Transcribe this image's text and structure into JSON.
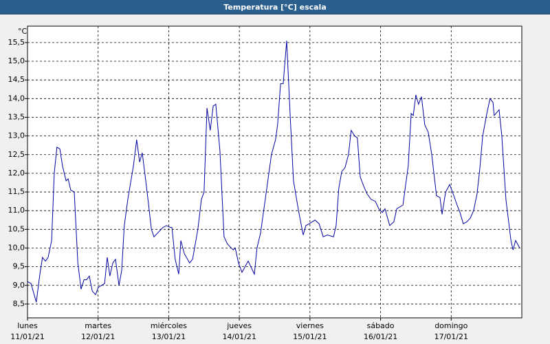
{
  "chart_data": {
    "type": "line",
    "title": "Temperatura [°C] escala",
    "y_label": "°C",
    "color": "#0000a0",
    "grid": true,
    "x": [
      0,
      1.2,
      3.0,
      4.2,
      5.1,
      6.1,
      7.0,
      8.2,
      9.1,
      10.0,
      11.0,
      11.9,
      13.1,
      13.8,
      14.7,
      15.9,
      17.1,
      18.2,
      19.2,
      20.1,
      21.0,
      22.0,
      23.1,
      24.1,
      25.2,
      26.2,
      27.1,
      28.0,
      29.0,
      29.9,
      31.1,
      32.0,
      32.9,
      34.1,
      36.0,
      37.1,
      38.1,
      39.0,
      40.2,
      41.1,
      42.1,
      43.0,
      44.2,
      46.0,
      47.2,
      48.6,
      49.1,
      50.2,
      51.4,
      52.1,
      53.3,
      55.1,
      56.1,
      57.9,
      59.1,
      60.0,
      61.0,
      62.1,
      63.1,
      64.0,
      65.4,
      66.8,
      68.0,
      69.9,
      70.6,
      71.7,
      72.9,
      74.3,
      75.0,
      77.1,
      78.0,
      79.2,
      80.8,
      82.9,
      84.3,
      85.0,
      86.0,
      86.9,
      88.1,
      89.3,
      90.4,
      92.1,
      93.7,
      94.6,
      95.8,
      97.7,
      99.1,
      100.5,
      101.9,
      104.0,
      104.9,
      105.8,
      106.8,
      107.9,
      109.1,
      110.0,
      111.2,
      112.1,
      113.1,
      114.3,
      115.4,
      116.8,
      118.2,
      119.4,
      120.6,
      121.5,
      122.2,
      123.1,
      124.5,
      125.5,
      127.6,
      129.4,
      130.4,
      131.1,
      132.0,
      132.9,
      133.9,
      135.0,
      136.2,
      137.4,
      139.0,
      140.2,
      140.9,
      142.1,
      143.5,
      144.9,
      146.0,
      147.0,
      148.1,
      149.3,
      150.5,
      151.6,
      152.8,
      153.7,
      154.7,
      156.1,
      157.2,
      158.2,
      158.6,
      160.3,
      161.2,
      162.6,
      164.3,
      165.0,
      165.9,
      167.3
    ],
    "values": [
      9.1,
      9.05,
      8.55,
      9.3,
      9.75,
      9.65,
      9.75,
      10.2,
      12.0,
      12.7,
      12.65,
      12.2,
      11.8,
      11.85,
      11.55,
      11.5,
      9.6,
      8.9,
      9.15,
      9.15,
      9.25,
      8.85,
      8.75,
      8.95,
      9.0,
      9.05,
      9.75,
      9.25,
      9.6,
      9.7,
      9.0,
      9.4,
      10.6,
      11.3,
      12.2,
      12.9,
      12.3,
      12.55,
      11.8,
      11.2,
      10.5,
      10.3,
      10.4,
      10.55,
      10.6,
      10.55,
      10.55,
      9.7,
      9.3,
      10.2,
      9.85,
      9.6,
      9.7,
      10.5,
      11.3,
      11.5,
      13.75,
      13.15,
      13.8,
      13.85,
      12.6,
      10.3,
      10.1,
      9.95,
      10.0,
      9.6,
      9.35,
      9.55,
      9.65,
      9.3,
      10.0,
      10.4,
      11.3,
      12.5,
      12.9,
      13.3,
      14.4,
      14.4,
      15.55,
      13.5,
      11.8,
      11.0,
      10.35,
      10.6,
      10.65,
      10.75,
      10.65,
      10.3,
      10.35,
      10.3,
      10.6,
      11.6,
      12.05,
      12.15,
      12.5,
      13.15,
      13.0,
      12.95,
      11.9,
      11.65,
      11.45,
      11.3,
      11.25,
      11.05,
      10.95,
      11.05,
      10.85,
      10.6,
      10.7,
      11.05,
      11.15,
      12.2,
      13.6,
      13.55,
      14.1,
      13.85,
      14.05,
      13.3,
      13.1,
      12.5,
      11.4,
      11.35,
      10.9,
      11.5,
      11.7,
      11.4,
      11.15,
      10.95,
      10.65,
      10.7,
      10.8,
      11.0,
      11.45,
      12.1,
      13.0,
      13.6,
      14.0,
      13.9,
      13.55,
      13.7,
      13.0,
      11.3,
      10.2,
      9.95,
      10.2,
      10.0
    ],
    "xlim": [
      0,
      168
    ],
    "ylim": [
      8.13,
      15.94
    ],
    "xticks": [
      {
        "value": 0,
        "label": "lunes\n11/01/21"
      },
      {
        "value": 24,
        "label": "martes\n12/01/21"
      },
      {
        "value": 48,
        "label": "miércoles\n13/01/21"
      },
      {
        "value": 72,
        "label": "jueves\n14/01/21"
      },
      {
        "value": 96,
        "label": "viernes\n15/01/21"
      },
      {
        "value": 120,
        "label": "sábado\n16/01/21"
      },
      {
        "value": 144,
        "label": "domingo\n17/01/21"
      }
    ],
    "yticks": [
      {
        "value": 8.5,
        "label": "8,5"
      },
      {
        "value": 9,
        "label": "9,0"
      },
      {
        "value": 9.5,
        "label": "9,5"
      },
      {
        "value": 10,
        "label": "10,0"
      },
      {
        "value": 10.5,
        "label": "10,5"
      },
      {
        "value": 11,
        "label": "11,0"
      },
      {
        "value": 11.5,
        "label": "11,5"
      },
      {
        "value": 12,
        "label": "12,0"
      },
      {
        "value": 12.5,
        "label": "12,5"
      },
      {
        "value": 13,
        "label": "13,0"
      },
      {
        "value": 13.5,
        "label": "13,5"
      },
      {
        "value": 14,
        "label": "14,0"
      },
      {
        "value": 14.5,
        "label": "14,5"
      },
      {
        "value": 15,
        "label": "15,0"
      },
      {
        "value": 15.5,
        "label": "15,5"
      }
    ]
  }
}
